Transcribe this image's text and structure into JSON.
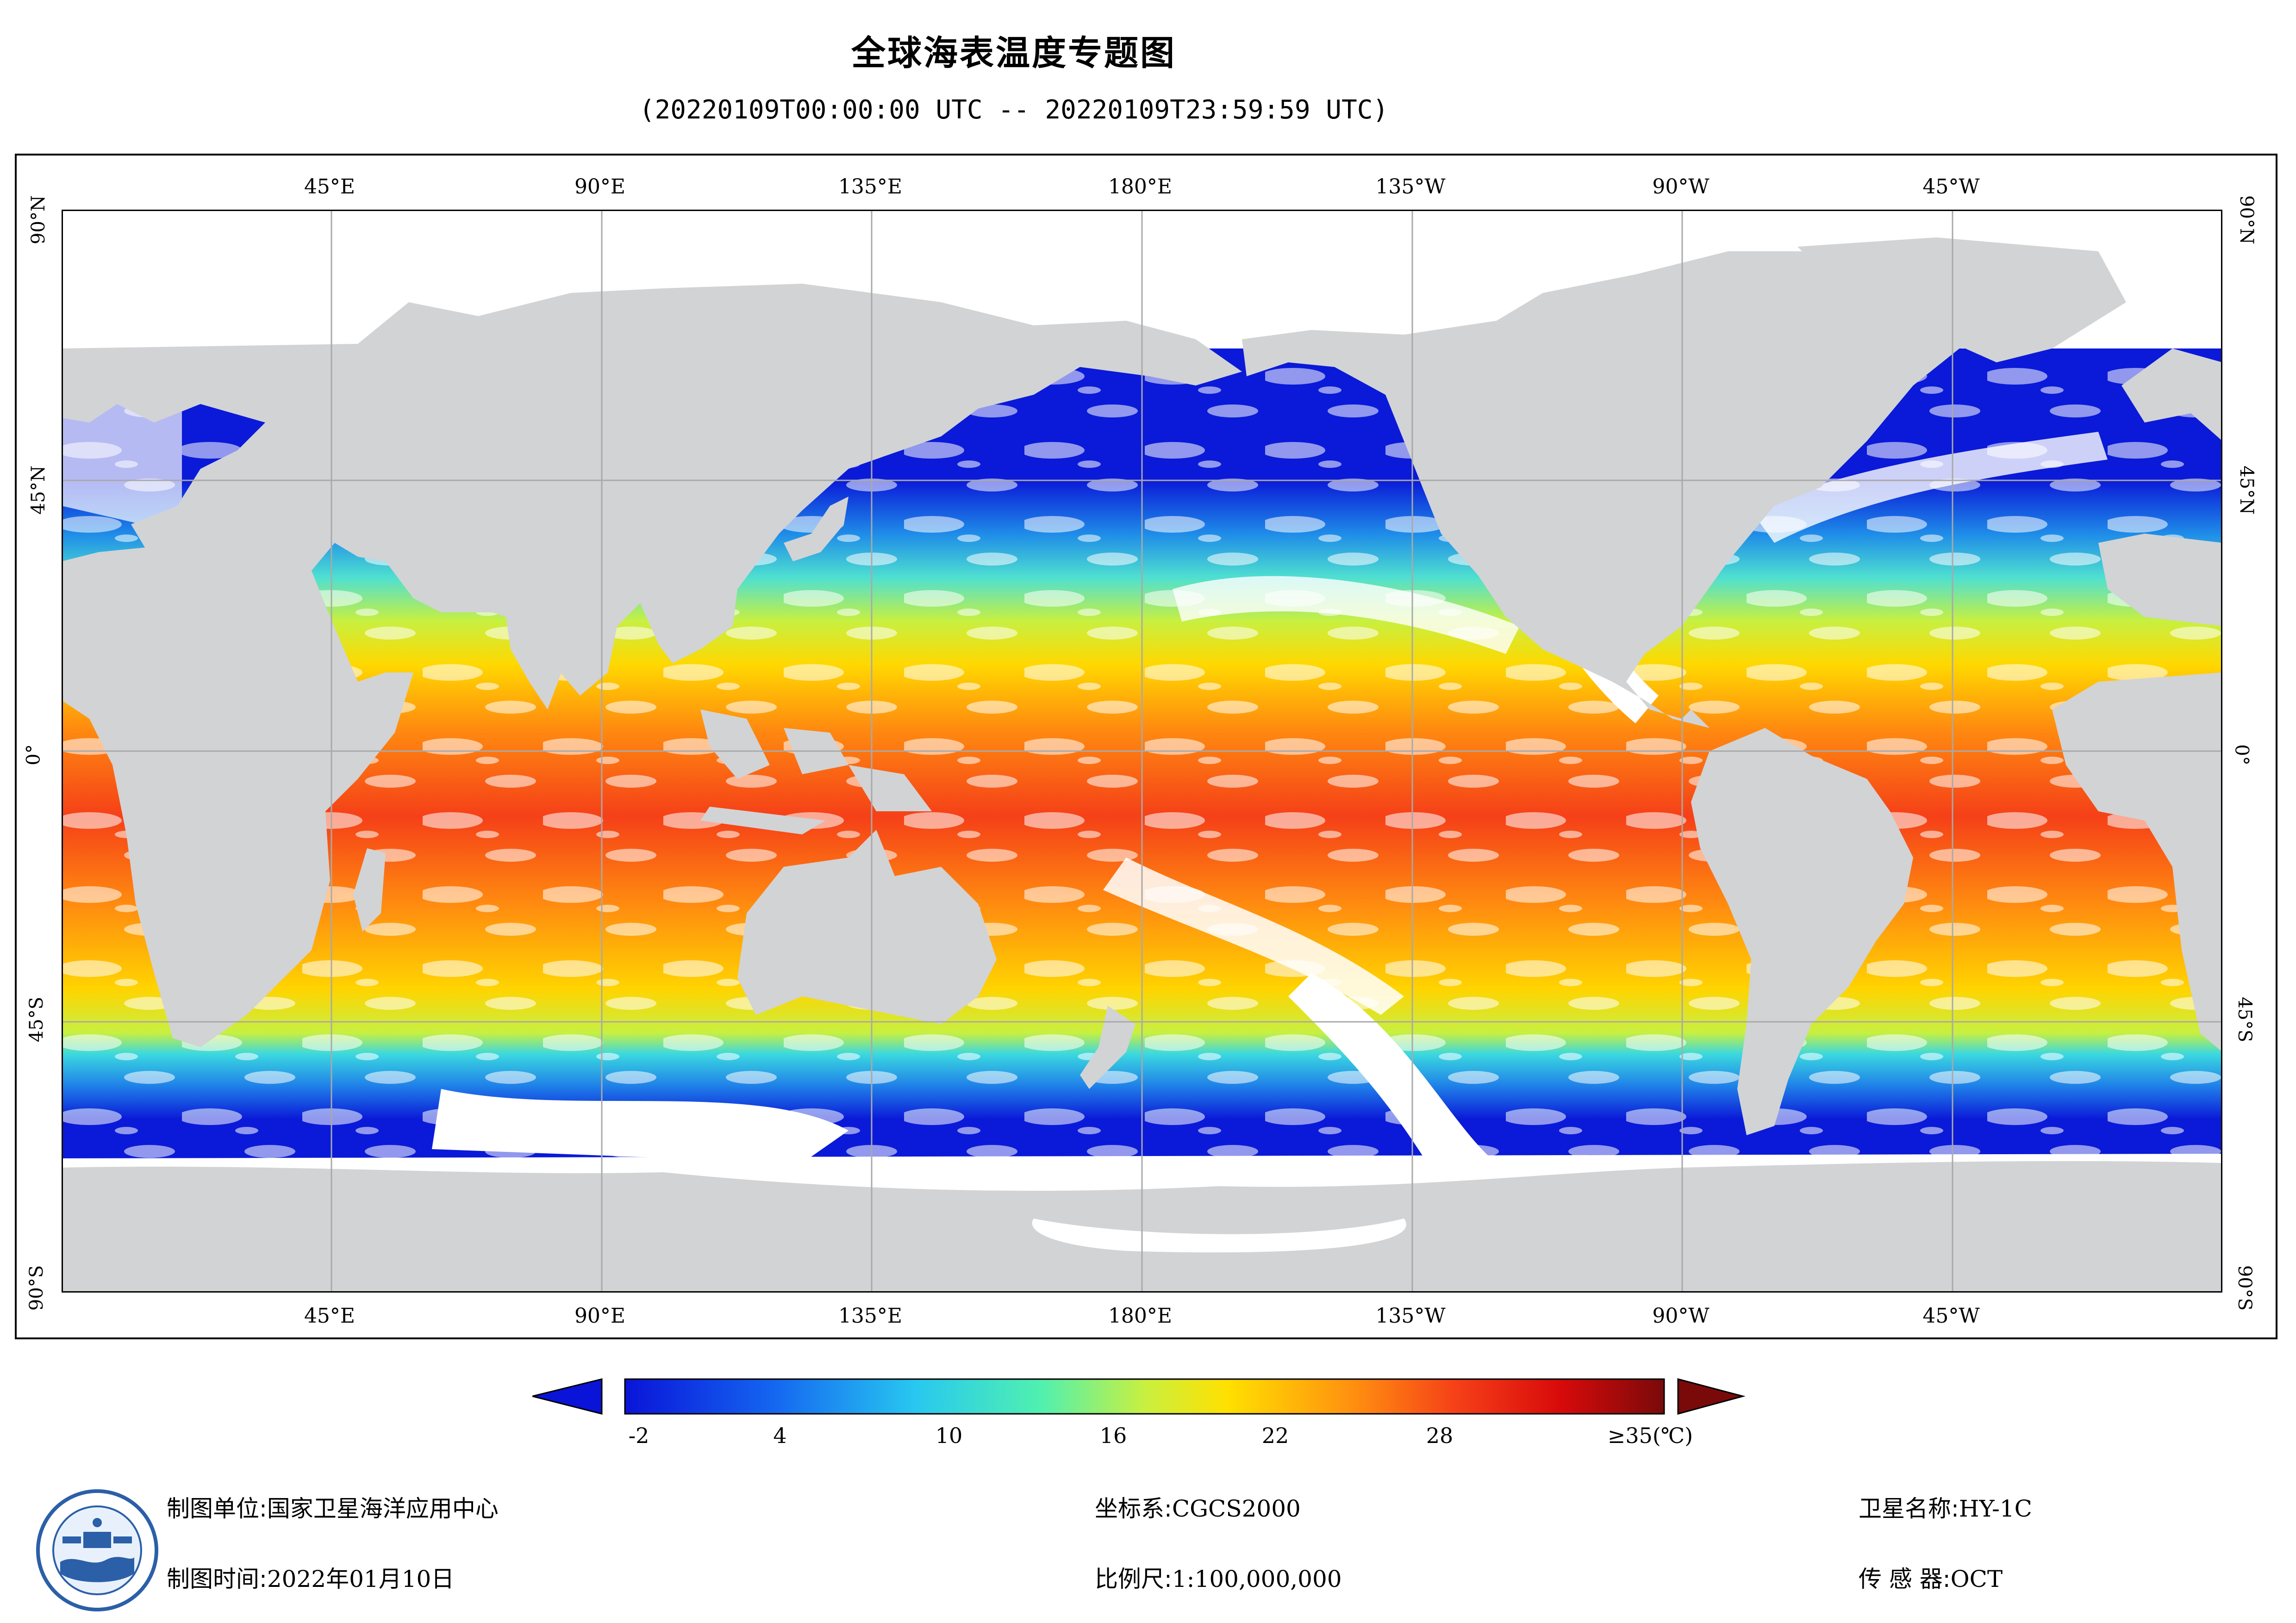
{
  "title": "全球海表温度专题图",
  "subtitle": "(20220109T00:00:00 UTC -- 20220109T23:59:59 UTC)",
  "map": {
    "longitude_labels": [
      "45°E",
      "90°E",
      "135°E",
      "180°E",
      "135°W",
      "90°W",
      "45°W"
    ],
    "latitude_labels": [
      "90°N",
      "45°N",
      "0°",
      "45°S",
      "90°S"
    ],
    "land_color": "#d2d3d5",
    "no_data_color": "#ffffff",
    "grid_color": "#a9a9a9"
  },
  "colorbar": {
    "labels": [
      "-2",
      "4",
      "10",
      "16",
      "22",
      "28",
      "≥35(℃)"
    ],
    "range": [
      -2,
      35
    ],
    "under_arrow_color": "#0a14d8",
    "over_arrow_color": "#7a0a0a"
  },
  "footer": {
    "producer_label": "制图单位:",
    "producer_value": "国家卫星海洋应用中心",
    "time_label": "制图时间:",
    "time_value": "2022年01月10日",
    "crs_label": "坐标系:",
    "crs_value": "CGCS2000",
    "scale_label": "比例尺:",
    "scale_value": "1:100,000,000",
    "satellite_label": "卫星名称:",
    "satellite_value": "HY-1C",
    "sensor_label": "传 感 器:",
    "sensor_value": "OCT"
  }
}
